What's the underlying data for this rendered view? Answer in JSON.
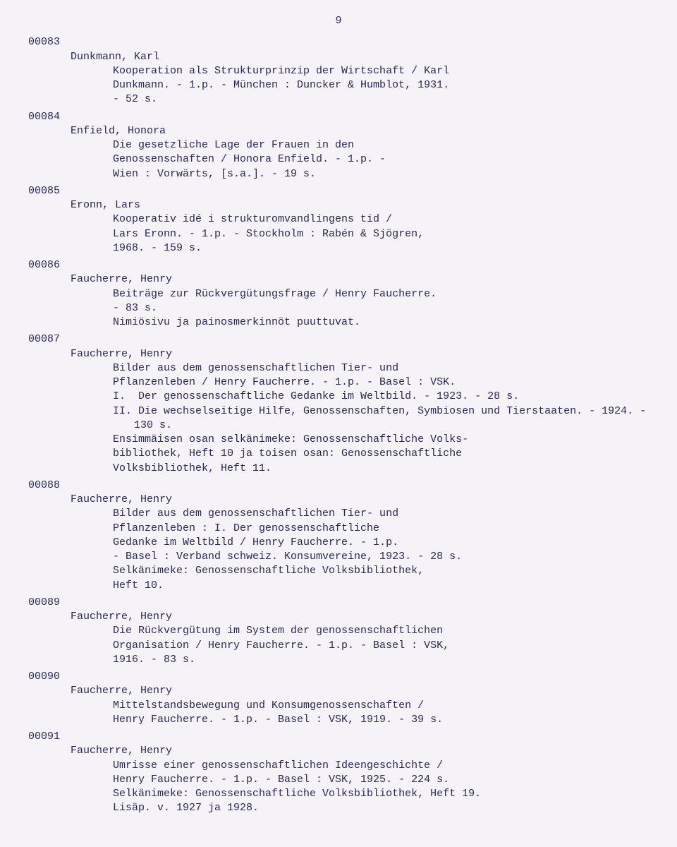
{
  "page_number": "9",
  "entries": [
    {
      "id": "00083",
      "author": "Dunkmann, Karl",
      "lines": [
        "Kooperation als Strukturprinzip der Wirtschaft / Karl",
        "Dunkmann. - 1.p. - München : Duncker & Humblot, 1931.",
        "- 52 s."
      ]
    },
    {
      "id": "00084",
      "author": "Enfield, Honora",
      "lines": [
        "Die gesetzliche Lage der Frauen in den",
        "Genossenschaften / Honora Enfield. - 1.p. -",
        "Wien : Vorwärts, [s.a.]. - 19 s."
      ]
    },
    {
      "id": "00085",
      "author": "Eronn, Lars",
      "lines": [
        "Kooperativ idé i strukturomvandlingens tid /",
        "Lars Eronn. - 1.p. - Stockholm : Rabén & Sjögren,",
        "1968. - 159 s."
      ]
    },
    {
      "id": "00086",
      "author": "Faucherre, Henry",
      "lines": [
        "Beiträge zur Rückvergütungsfrage / Henry Faucherre.",
        "- 83 s.",
        "Nimiösivu ja painosmerkinnöt puuttuvat."
      ]
    },
    {
      "id": "00087",
      "author": "Faucherre, Henry",
      "lines": [
        "Bilder aus dem genossenschaftlichen Tier- und",
        "Pflanzenleben / Henry Faucherre. - 1.p. - Basel : VSK."
      ],
      "sublines": [
        "I.  Der genossenschaftliche Gedanke im Weltbild. - 1923. - 28 s.",
        "II. Die wechselseitige Hilfe, Genossenschaften, Symbiosen und Tierstaaten. - 1924. - 130 s."
      ],
      "cont": [
        "Ensimmäisen osan selkänimeke: Genossenschaftliche Volks-",
        "bibliothek, Heft 10 ja toisen osan: Genossenschaftliche",
        "Volksbibliothek, Heft 11."
      ]
    },
    {
      "id": "00088",
      "author": "Faucherre, Henry",
      "lines": [
        "Bilder aus dem genossenschaftlichen Tier- und",
        "Pflanzenleben : I. Der genossenschaftliche",
        "Gedanke im Weltbild / Henry Faucherre. - 1.p.",
        "- Basel : Verband schweiz. Konsumvereine, 1923. - 28 s.",
        "Selkänimeke: Genossenschaftliche Volksbibliothek,",
        "Heft 10."
      ]
    },
    {
      "id": "00089",
      "author": "Faucherre, Henry",
      "lines": [
        "Die Rückvergütung im System der genossenschaftlichen",
        "Organisation / Henry Faucherre. - 1.p. - Basel : VSK,",
        "1916. - 83 s."
      ]
    },
    {
      "id": "00090",
      "author": "Faucherre, Henry",
      "lines": [
        "Mittelstandsbewegung und Konsumgenossenschaften /",
        "Henry Faucherre. - 1.p. - Basel : VSK, 1919. - 39 s."
      ]
    },
    {
      "id": "00091",
      "author": "Faucherre, Henry",
      "lines": [
        "Umrisse einer genossenschaftlichen Ideengeschichte /",
        "Henry Faucherre. - 1.p. - Basel : VSK, 1925. - 224 s.",
        "Selkänimeke: Genossenschaftliche Volksbibliothek, Heft 19.",
        "Lisäp. v. 1927 ja 1928."
      ]
    }
  ]
}
